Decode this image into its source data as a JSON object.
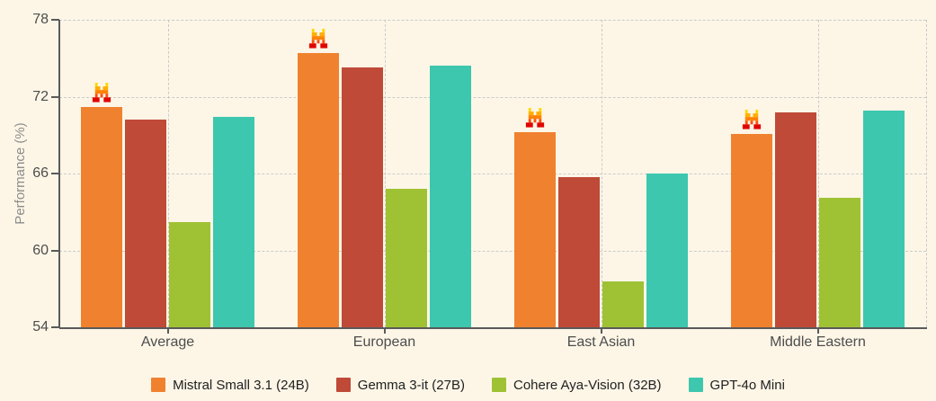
{
  "colors": {
    "background": "#FDF6E7",
    "grid": "#CBCBCB",
    "axis": "#5A5A5A",
    "tick_text": "#4D4D4D",
    "ylabel_text": "#8C8C8C",
    "legend_text": "#1F1F1F",
    "logo": {
      "yellow": "#FFD702",
      "amber": "#FFAF02",
      "orange": "#FF8205",
      "coral": "#FA500F",
      "red": "#E10500"
    }
  },
  "chart_data": {
    "type": "bar",
    "title": "",
    "xlabel": "",
    "ylabel": "Performance (%)",
    "ylim": [
      54,
      78
    ],
    "yticks": [
      54,
      60,
      66,
      72,
      78
    ],
    "grid": "dashed",
    "legend_position": "bottom-center",
    "categories": [
      "Average",
      "European",
      "East Asian",
      "Middle Eastern"
    ],
    "series": [
      {
        "name": "Mistral Small 3.1 (24B)",
        "color": "#F0822F",
        "marker": "mistral-logo",
        "values": [
          71.2,
          75.4,
          69.2,
          69.1
        ]
      },
      {
        "name": "Gemma 3-it (27B)",
        "color": "#BF4A38",
        "values": [
          70.2,
          74.3,
          65.7,
          70.8
        ]
      },
      {
        "name": "Cohere Aya-Vision (32B)",
        "color": "#9FC234",
        "values": [
          62.2,
          64.8,
          57.6,
          64.1
        ]
      },
      {
        "name": "GPT-4o Mini",
        "color": "#3CC7AE",
        "values": [
          70.4,
          74.4,
          66.0,
          70.9
        ]
      }
    ],
    "annotations": [
      {
        "type": "icon",
        "icon": "mistral-logo",
        "applies_to_series": "Mistral Small 3.1 (24B)",
        "position": "above-bar"
      }
    ]
  }
}
